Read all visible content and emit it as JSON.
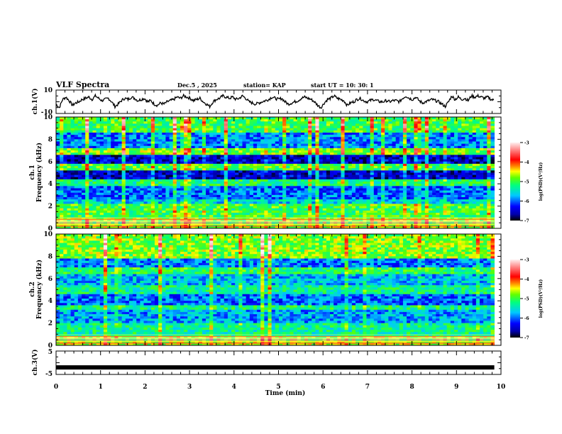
{
  "header": {
    "title": "VLF Spectra",
    "date": "Dec.5  , 2025",
    "station": "station= KAP",
    "start": "start  UT =   10: 30: 1"
  },
  "colors": {
    "axis": "#000000",
    "background": "#ffffff",
    "colormap": [
      "#000000",
      "#0000aa",
      "#0000ff",
      "#00c8ff",
      "#00ff80",
      "#60ff00",
      "#ffff00",
      "#ff8000",
      "#ff0000",
      "#ff8080",
      "#fff0f0"
    ]
  },
  "chart_data": [
    {
      "type": "line",
      "name": "ch1-waveform",
      "ylabel": "ch.1(V)",
      "yticks": [
        "10",
        "-10"
      ],
      "ylim": [
        -10,
        10
      ],
      "xlim": [
        0,
        10
      ],
      "x_end_min": 9.85,
      "series_description": "noisy waveform around 0 V, range approx -8 to 6 V",
      "y": [
        -2,
        -5,
        2,
        4,
        1,
        -3,
        -1,
        0,
        2,
        3,
        4,
        2,
        5,
        3,
        1,
        2,
        3,
        0,
        -4,
        -2,
        1,
        3,
        2,
        4,
        3,
        1,
        2,
        3,
        0,
        1,
        -2,
        -3,
        -1,
        -2,
        0,
        1,
        2,
        4,
        3,
        5,
        4,
        3,
        1,
        2,
        3,
        0,
        -2,
        -4,
        0,
        2,
        3,
        5,
        4,
        3,
        4,
        2,
        3,
        5,
        3,
        0,
        -1,
        -2,
        -1,
        0,
        1,
        2,
        4,
        3,
        2,
        3,
        0,
        -2,
        -1,
        0,
        1,
        3,
        4,
        3,
        2,
        0,
        -3,
        -5,
        -1,
        2,
        3,
        5,
        3,
        2,
        1,
        -3,
        -1,
        0,
        2,
        3,
        1,
        0,
        1,
        2,
        1,
        0,
        0,
        1,
        0,
        1,
        1,
        0,
        3,
        5,
        3,
        2,
        4,
        1,
        -1,
        0,
        1,
        2,
        1,
        0,
        -2,
        -4,
        0,
        5,
        2,
        4,
        2,
        3,
        1,
        5,
        4,
        5,
        4,
        3,
        4,
        2,
        1
      ]
    },
    {
      "type": "heatmap",
      "name": "ch1-spectrogram",
      "ylabel": "ch.1\nFrequency (kHz)",
      "yticks": [
        "0",
        "2",
        "4",
        "6",
        "8",
        "10"
      ],
      "ylim": [
        0,
        10
      ],
      "xlim": [
        0,
        10
      ],
      "colorbar": {
        "label": "log(PSD)(V²/Hz)",
        "ticks": [
          "-3",
          "-4",
          "-5",
          "-6",
          "-7"
        ],
        "range": [
          -7,
          -3
        ]
      },
      "bands_kHz": [
        {
          "from": 0,
          "to": 1,
          "level": -4.7
        },
        {
          "from": 1,
          "to": 2.2,
          "level": -5.0
        },
        {
          "from": 2.2,
          "to": 2.6,
          "level": -5.6
        },
        {
          "from": 2.6,
          "to": 3.8,
          "level": -6.0
        },
        {
          "from": 3.8,
          "to": 4.4,
          "level": -5.2
        },
        {
          "from": 4.4,
          "to": 5.2,
          "level": -6.5
        },
        {
          "from": 5.2,
          "to": 5.8,
          "level": -5.0
        },
        {
          "from": 5.8,
          "to": 6.6,
          "level": -6.5
        },
        {
          "from": 6.6,
          "to": 7.2,
          "level": -4.8
        },
        {
          "from": 7.2,
          "to": 8.6,
          "level": -5.9
        },
        {
          "from": 8.6,
          "to": 10,
          "level": -5.0
        }
      ]
    },
    {
      "type": "heatmap",
      "name": "ch2-spectrogram",
      "ylabel": "ch.2\nFrequency (kHz)",
      "yticks": [
        "0",
        "2",
        "4",
        "6",
        "8",
        "10"
      ],
      "ylim": [
        0,
        10
      ],
      "xlim": [
        0,
        10
      ],
      "colorbar": {
        "label": "log(PSD)(V²/Hz)",
        "ticks": [
          "-3",
          "-4",
          "-5",
          "-6",
          "-7"
        ],
        "range": [
          -7,
          -3
        ]
      },
      "bands_kHz": [
        {
          "from": 0,
          "to": 0.8,
          "level": -4.6
        },
        {
          "from": 0.8,
          "to": 2.0,
          "level": -5.3
        },
        {
          "from": 2.0,
          "to": 3.2,
          "level": -5.8
        },
        {
          "from": 3.2,
          "to": 3.6,
          "level": -5.2
        },
        {
          "from": 3.6,
          "to": 4.6,
          "level": -6.0
        },
        {
          "from": 4.6,
          "to": 5.4,
          "level": -5.3
        },
        {
          "from": 5.4,
          "to": 6.4,
          "level": -5.7
        },
        {
          "from": 6.4,
          "to": 7.0,
          "level": -5.1
        },
        {
          "from": 7.0,
          "to": 7.8,
          "level": -5.9
        },
        {
          "from": 7.8,
          "to": 10,
          "level": -4.8
        }
      ]
    },
    {
      "type": "line",
      "name": "ch3-waveform",
      "ylabel": "ch.3(V)",
      "yticks": [
        "5",
        "-5"
      ],
      "ylim": [
        -5,
        5
      ],
      "xlim": [
        0,
        10
      ],
      "x_end_min": 9.85,
      "value": -2
    }
  ],
  "xaxis": {
    "label": "Time  (min)",
    "ticks": [
      "0",
      "1",
      "2",
      "3",
      "4",
      "5",
      "6",
      "7",
      "8",
      "9",
      "10"
    ]
  }
}
